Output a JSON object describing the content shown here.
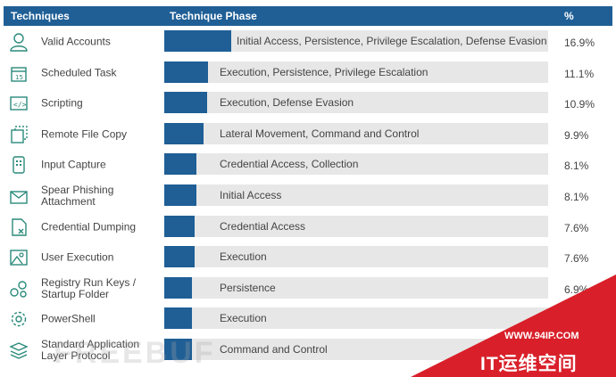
{
  "chart_data": {
    "type": "bar",
    "header": {
      "techniques": "Techniques",
      "phase": "Technique Phase",
      "percent": "%"
    },
    "rows": [
      {
        "technique": "Valid Accounts",
        "phase": "Initial Access, Persistence, Privilege Escalation, Defense Evasion",
        "value": 16.9,
        "label": "16.9%",
        "icon": "user-icon"
      },
      {
        "technique": "Scheduled Task",
        "phase": "Execution, Persistence, Privilege Escalation",
        "value": 11.1,
        "label": "11.1%",
        "icon": "calendar-icon"
      },
      {
        "technique": "Scripting",
        "phase": "Execution, Defense Evasion",
        "value": 10.9,
        "label": "10.9%",
        "icon": "code-icon"
      },
      {
        "technique": "Remote File Copy",
        "phase": "Lateral Movement, Command and Control",
        "value": 9.9,
        "label": "9.9%",
        "icon": "copy-icon"
      },
      {
        "technique": "Input Capture",
        "phase": "Credential Access, Collection",
        "value": 8.1,
        "label": "8.1%",
        "icon": "keypad-icon"
      },
      {
        "technique": "Spear Phishing Attachment",
        "phase": "Initial Access",
        "value": 8.1,
        "label": "8.1%",
        "icon": "envelope-icon"
      },
      {
        "technique": "Credential Dumping",
        "phase": "Credential Access",
        "value": 7.6,
        "label": "7.6%",
        "icon": "document-x-icon"
      },
      {
        "technique": "User Execution",
        "phase": "Execution",
        "value": 7.6,
        "label": "7.6%",
        "icon": "image-icon"
      },
      {
        "technique": "Registry Run Keys / Startup Folder",
        "phase": "Persistence",
        "value": 6.9,
        "label": "6.9%",
        "icon": "nodes-icon"
      },
      {
        "technique": "PowerShell",
        "phase": "Execution",
        "value": 6.9,
        "label": "",
        "icon": "gear-icon"
      },
      {
        "technique": "Standard Application Layer Protocol",
        "phase": "Command and Control",
        "value": 6.9,
        "label": "",
        "icon": "layers-icon"
      }
    ],
    "xlim": [
      0,
      100
    ]
  },
  "watermark": {
    "url": "WWW.94IP.COM",
    "name": "IT运维空间",
    "faint": "FREEBUF"
  },
  "colors": {
    "bar": "#1f5f96",
    "track": "#e7e7e7",
    "header": "#1f5f96",
    "watermark": "#d9202a"
  }
}
